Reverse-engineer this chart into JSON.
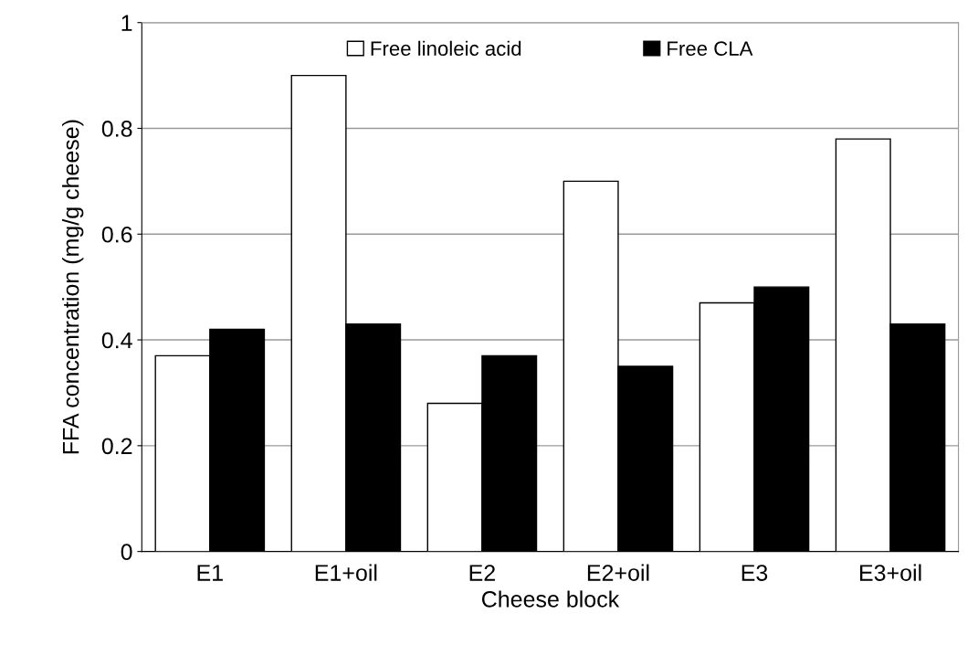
{
  "chart_data": {
    "type": "bar",
    "xlabel": "Cheese block",
    "ylabel": "FFA concentration (mg/g cheese)",
    "categories": [
      "E1",
      "E1+oil",
      "E2",
      "E2+oil",
      "E3",
      "E3+oil"
    ],
    "series": [
      {
        "name": "Free linoleic acid",
        "color": "#ffffff",
        "values": [
          0.37,
          0.9,
          0.28,
          0.7,
          0.47,
          0.78
        ]
      },
      {
        "name": "Free CLA",
        "color": "#000000",
        "values": [
          0.42,
          0.43,
          0.37,
          0.35,
          0.5,
          0.43
        ]
      }
    ],
    "ylim": [
      0,
      1
    ],
    "yticks": [
      0,
      0.2,
      0.4,
      0.6,
      0.8,
      1
    ],
    "grid": "y",
    "legend": "top"
  }
}
